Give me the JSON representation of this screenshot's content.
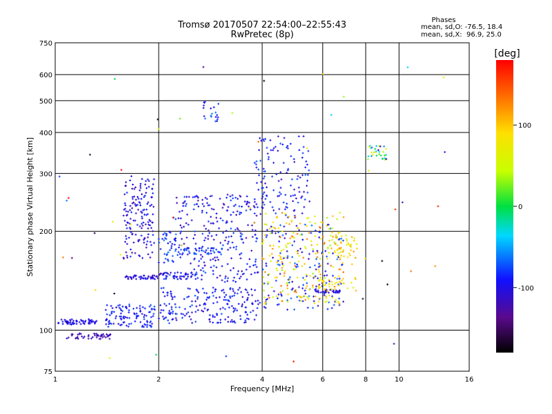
{
  "chart_data": {
    "type": "scatter",
    "title": "Tromsø 20170507 22:54:00–22:55:43",
    "subtitle": "RwPretec (8p)",
    "xlabel": "Frequency [MHz]",
    "ylabel": "Stationary phase Virtual Height [km]",
    "x_scale": "log2",
    "y_scale": "log",
    "xlim": [
      1,
      16
    ],
    "ylim": [
      75,
      750
    ],
    "x_ticks": [
      1,
      2,
      4,
      6,
      8,
      10,
      16
    ],
    "x_tick_labels": [
      "1",
      "2",
      "4",
      "6",
      "8",
      "10",
      "16"
    ],
    "y_ticks": [
      75,
      100,
      200,
      300,
      400,
      500,
      600,
      750
    ],
    "y_tick_labels": [
      "75",
      "100",
      "200",
      "300",
      "400",
      "500",
      "600",
      "750"
    ],
    "grid": true,
    "stats": {
      "heading": "Phases",
      "line_o": "mean, sd,O: -76.5, 18.4",
      "line_x": "mean, sd,X:  96.9, 25.0"
    },
    "colorbar": {
      "label": "[deg]",
      "range": [
        -180,
        180
      ],
      "ticks": [
        -100,
        0,
        100
      ],
      "tick_labels": [
        "-100",
        "0",
        "100"
      ],
      "colormap": "rainbow (black-purple-blue-cyan-green-yellow-red)"
    },
    "series": [
      {
        "clusters": [
          {
            "x": [
              1.02,
              1.32
            ],
            "y": [
              104,
              108
            ],
            "phase": [
              -110,
              -90
            ],
            "count": 60
          },
          {
            "x": [
              1.08,
              1.45
            ],
            "y": [
              94,
              98
            ],
            "phase": [
              -130,
              -110
            ],
            "count": 50
          },
          {
            "x": [
              1.4,
              1.95
            ],
            "y": [
              102,
              120
            ],
            "phase": [
              -110,
              -70
            ],
            "count": 110
          },
          {
            "x": [
              1.58,
              1.95
            ],
            "y": [
              165,
              295
            ],
            "phase": [
              -125,
              -80
            ],
            "count": 150
          },
          {
            "x": [
              1.6,
              2.0
            ],
            "y": [
              143,
              147
            ],
            "phase": [
              -120,
              -90
            ],
            "count": 45
          },
          {
            "x": [
              2.0,
              2.6
            ],
            "y": [
              143,
              150
            ],
            "phase": [
              -120,
              -70
            ],
            "count": 50
          },
          {
            "x": [
              2.0,
              2.3
            ],
            "y": [
              160,
              200
            ],
            "phase": [
              -100,
              -60
            ],
            "count": 40
          },
          {
            "x": [
              2.0,
              3.9
            ],
            "y": [
              105,
              135
            ],
            "phase": [
              -115,
              -70
            ],
            "count": 200
          },
          {
            "x": [
              2.3,
              3.1
            ],
            "y": [
              170,
              178
            ],
            "phase": [
              -100,
              -60
            ],
            "count": 40
          },
          {
            "x": [
              2.2,
              3.9
            ],
            "y": [
              140,
              260
            ],
            "phase": [
              -125,
              -70
            ],
            "count": 260
          },
          {
            "x": [
              2.7,
              3.0
            ],
            "y": [
              430,
              500
            ],
            "phase": [
              -100,
              -60
            ],
            "count": 20
          },
          {
            "x": [
              3.8,
              5.5
            ],
            "y": [
              220,
              390
            ],
            "phase": [
              -120,
              -70
            ],
            "count": 130
          },
          {
            "x": [
              4.0,
              6.9
            ],
            "y": [
              115,
              210
            ],
            "phase": [
              -120,
              -60
            ],
            "count": 160
          },
          {
            "x": [
              4.0,
              6.9
            ],
            "y": [
              120,
              230
            ],
            "phase": [
              30,
              140
            ],
            "count": 220
          },
          {
            "x": [
              5.7,
              6.8
            ],
            "y": [
              130,
              133
            ],
            "phase": [
              -120,
              -90
            ],
            "count": 30
          },
          {
            "x": [
              5.8,
              7.5
            ],
            "y": [
              130,
              145
            ],
            "phase": [
              60,
              110
            ],
            "count": 35
          },
          {
            "x": [
              8.1,
              9.3
            ],
            "y": [
              330,
              365
            ],
            "phase": [
              -120,
              90
            ],
            "count": 30
          },
          {
            "x": [
              6.5,
              7.6
            ],
            "y": [
              165,
              200
            ],
            "phase": [
              40,
              120
            ],
            "count": 40
          },
          {
            "x": [
              1.0,
              14.0
            ],
            "y": [
              76,
              740
            ],
            "phase": [
              -180,
              180
            ],
            "count": 55
          }
        ]
      }
    ]
  }
}
